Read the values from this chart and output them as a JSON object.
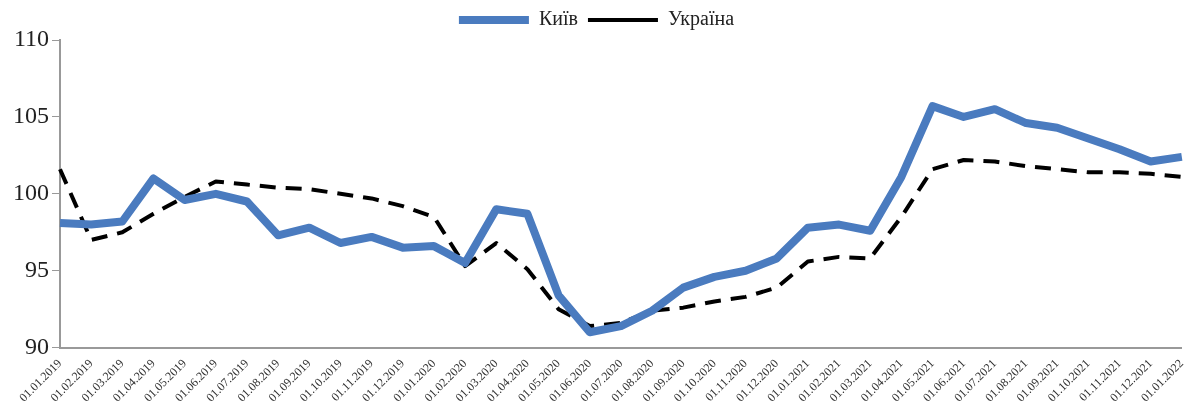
{
  "chart_data": {
    "type": "line",
    "categories": [
      "01.01.2019",
      "01.02.2019",
      "01.03.2019",
      "01.04.2019",
      "01.05.2019",
      "01.06.2019",
      "01.07.2019",
      "01.08.2019",
      "01.09.2019",
      "01.10.2019",
      "01.11.2019",
      "01.12.2019",
      "01.01.2020",
      "01.02.2020",
      "01.03.2020",
      "01.04.2020",
      "01.05.2020",
      "01.06.2020",
      "01.07.2020",
      "01.08.2020",
      "01.09.2020",
      "01.10.2020",
      "01.11.2020",
      "01.12.2020",
      "01.01.2021",
      "01.02.2021",
      "01.03.2021",
      "01.04.2021",
      "01.05.2021",
      "01.06.2021",
      "01.07.2021",
      "01.08.2021",
      "01.09.2021",
      "01.10.2021",
      "01.11.2021",
      "01.12.2021",
      "01.01.2022"
    ],
    "series": [
      {
        "name": "Київ",
        "color": "#4a7bbf",
        "line_style": "solid",
        "values": [
          98.1,
          98.0,
          98.2,
          101.0,
          99.6,
          100.0,
          99.5,
          97.3,
          97.8,
          96.8,
          97.2,
          96.5,
          96.6,
          95.5,
          99.0,
          98.7,
          93.4,
          91.0,
          91.4,
          92.4,
          93.9,
          94.6,
          95.0,
          95.8,
          97.8,
          98.0,
          97.6,
          101.1,
          105.7,
          105.0,
          105.5,
          104.6,
          104.3,
          103.6,
          102.9,
          102.1,
          102.4
        ]
      },
      {
        "name": "Україна",
        "color": "#000000",
        "line_style": "dashed",
        "values": [
          101.6,
          97.0,
          97.5,
          98.7,
          99.8,
          100.8,
          100.6,
          100.4,
          100.3,
          100.0,
          99.7,
          99.2,
          98.5,
          95.3,
          96.8,
          95.1,
          92.5,
          91.4,
          91.6,
          92.4,
          92.6,
          93.0,
          93.3,
          93.9,
          95.6,
          95.9,
          95.8,
          98.5,
          101.6,
          102.2,
          102.1,
          101.8,
          101.6,
          101.4,
          101.4,
          101.3,
          101.1
        ]
      }
    ],
    "ylim": [
      90,
      110
    ],
    "yticks": [
      90,
      95,
      100,
      105,
      110
    ],
    "grid": false,
    "legend": "top",
    "marker": "none"
  }
}
